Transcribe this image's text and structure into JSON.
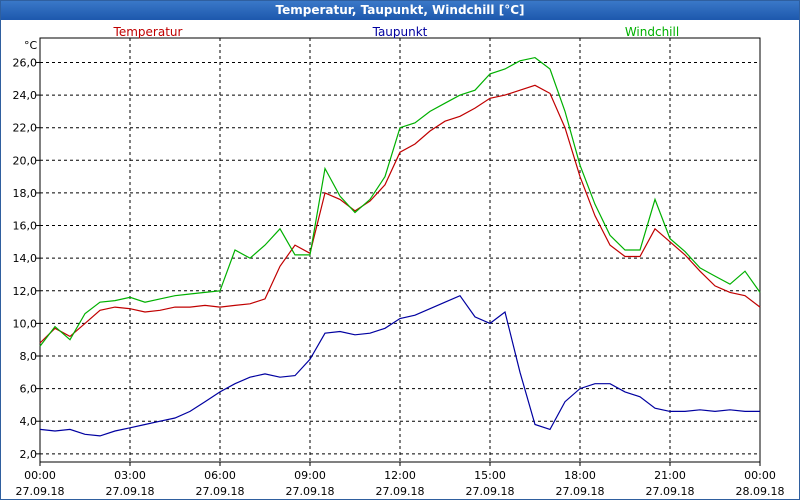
{
  "window": {
    "title": "Temperatur, Taupunkt, Windchill [°C]"
  },
  "chart_data": {
    "type": "line",
    "title": "Temperatur, Taupunkt, Windchill [°C]",
    "ylabel": "°C",
    "xlabel": "",
    "ylim": [
      1.5,
      27.5
    ],
    "xlim": [
      0,
      24
    ],
    "grid": true,
    "yticks": [
      2,
      4,
      6,
      8,
      10,
      12,
      14,
      16,
      18,
      20,
      22,
      24,
      26
    ],
    "ytick_labels": [
      "2,0",
      "4,0",
      "6,0",
      "8,0",
      "10,0",
      "12,0",
      "14,0",
      "16,0",
      "18,0",
      "20,0",
      "22,0",
      "24,0",
      "26,0"
    ],
    "xticks": [
      0,
      3,
      6,
      9,
      12,
      15,
      18,
      21,
      24
    ],
    "xtick_labels": [
      {
        "time": "00:00",
        "date": "27.09.18"
      },
      {
        "time": "03:00",
        "date": "27.09.18"
      },
      {
        "time": "06:00",
        "date": "27.09.18"
      },
      {
        "time": "09:00",
        "date": "27.09.18"
      },
      {
        "time": "12:00",
        "date": "27.09.18"
      },
      {
        "time": "15:00",
        "date": "27.09.18"
      },
      {
        "time": "18:00",
        "date": "27.09.18"
      },
      {
        "time": "21:00",
        "date": "27.09.18"
      },
      {
        "time": "00:00",
        "date": "28.09.18"
      }
    ],
    "legend_position": "top",
    "series": [
      {
        "name": "Temperatur",
        "color": "#c00000",
        "x": [
          0,
          0.5,
          1,
          1.5,
          2,
          2.5,
          3,
          3.5,
          4,
          4.5,
          5,
          5.5,
          6,
          6.5,
          7,
          7.5,
          8,
          8.5,
          9,
          9.5,
          10,
          10.5,
          11,
          11.5,
          12,
          12.5,
          13,
          13.5,
          14,
          14.5,
          15,
          15.5,
          16,
          16.5,
          17,
          17.5,
          18,
          18.5,
          19,
          19.5,
          20,
          20.5,
          21,
          21.5,
          22,
          22.5,
          23,
          23.5,
          24
        ],
        "values": [
          8.8,
          9.7,
          9.2,
          10.0,
          10.8,
          11.0,
          10.9,
          10.7,
          10.8,
          11.0,
          11.0,
          11.1,
          11.0,
          11.1,
          11.2,
          11.5,
          13.5,
          14.8,
          14.3,
          18.0,
          17.6,
          16.9,
          17.5,
          18.5,
          20.5,
          21.0,
          21.8,
          22.4,
          22.7,
          23.2,
          23.8,
          24.0,
          24.3,
          24.6,
          24.1,
          22.0,
          19.0,
          16.6,
          14.8,
          14.1,
          14.1,
          15.8,
          15.0,
          14.2,
          13.2,
          12.3,
          11.9,
          11.7,
          11.0
        ]
      },
      {
        "name": "Taupunkt",
        "color": "#0000a0",
        "x": [
          0,
          0.5,
          1,
          1.5,
          2,
          2.5,
          3,
          3.5,
          4,
          4.5,
          5,
          5.5,
          6,
          6.5,
          7,
          7.5,
          8,
          8.5,
          9,
          9.5,
          10,
          10.5,
          11,
          11.5,
          12,
          12.5,
          13,
          13.5,
          14,
          14.5,
          15,
          15.5,
          16,
          16.5,
          17,
          17.5,
          18,
          18.5,
          19,
          19.5,
          20,
          20.5,
          21,
          21.5,
          22,
          22.5,
          23,
          23.5,
          24
        ],
        "values": [
          3.5,
          3.4,
          3.5,
          3.2,
          3.1,
          3.4,
          3.6,
          3.8,
          4.0,
          4.2,
          4.6,
          5.2,
          5.8,
          6.3,
          6.7,
          6.9,
          6.7,
          6.8,
          7.8,
          9.4,
          9.5,
          9.3,
          9.4,
          9.7,
          10.3,
          10.5,
          10.9,
          11.3,
          11.7,
          10.4,
          10.0,
          10.7,
          7.0,
          3.8,
          3.5,
          5.2,
          6.0,
          6.3,
          6.3,
          5.8,
          5.5,
          4.8,
          4.6,
          4.6,
          4.7,
          4.6,
          4.7,
          4.6,
          4.6
        ]
      },
      {
        "name": "Windchill",
        "color": "#00b000",
        "x": [
          0,
          0.5,
          1,
          1.5,
          2,
          2.5,
          3,
          3.5,
          4,
          4.5,
          5,
          5.5,
          6,
          6.5,
          7,
          7.5,
          8,
          8.5,
          9,
          9.5,
          10,
          10.5,
          11,
          11.5,
          12,
          12.5,
          13,
          13.5,
          14,
          14.5,
          15,
          15.5,
          16,
          16.5,
          17,
          17.5,
          18,
          18.5,
          19,
          19.5,
          20,
          20.5,
          21,
          21.5,
          22,
          22.5,
          23,
          23.5,
          24
        ],
        "values": [
          8.6,
          9.8,
          9.0,
          10.6,
          11.3,
          11.4,
          11.6,
          11.3,
          11.5,
          11.7,
          11.8,
          11.9,
          12.0,
          14.5,
          14.0,
          14.8,
          15.8,
          14.2,
          14.2,
          19.5,
          17.8,
          16.8,
          17.6,
          19.0,
          22.0,
          22.3,
          23.0,
          23.5,
          24.0,
          24.3,
          25.3,
          25.6,
          26.1,
          26.3,
          25.6,
          23.0,
          19.7,
          17.3,
          15.4,
          14.5,
          14.5,
          17.6,
          15.2,
          14.4,
          13.4,
          12.9,
          12.4,
          13.2,
          11.9
        ]
      }
    ]
  }
}
